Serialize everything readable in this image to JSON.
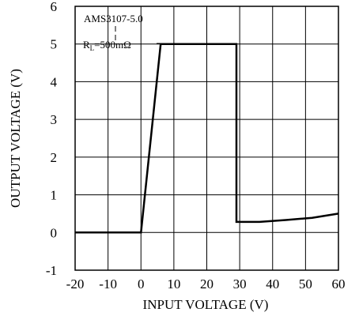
{
  "chart_data": {
    "type": "line",
    "xlabel": "INPUT VOLTAGE (V)",
    "ylabel": "OUTPUT VOLTAGE (V)",
    "xlim": [
      -20,
      60
    ],
    "ylim": [
      -1,
      6
    ],
    "xticks": [
      -20,
      -10,
      0,
      10,
      20,
      30,
      40,
      50,
      60
    ],
    "yticks": [
      -1,
      0,
      1,
      2,
      3,
      4,
      5,
      6
    ],
    "grid": true,
    "annotations": [
      "AMS3107-5.0",
      "R",
      "L",
      "=500mΩ"
    ],
    "series": [
      {
        "x": [
          -20,
          0,
          6,
          29,
          29,
          36,
          44,
          52,
          60
        ],
        "y": [
          0,
          0,
          5,
          5,
          0.28,
          0.28,
          0.33,
          0.39,
          0.5
        ]
      }
    ]
  }
}
